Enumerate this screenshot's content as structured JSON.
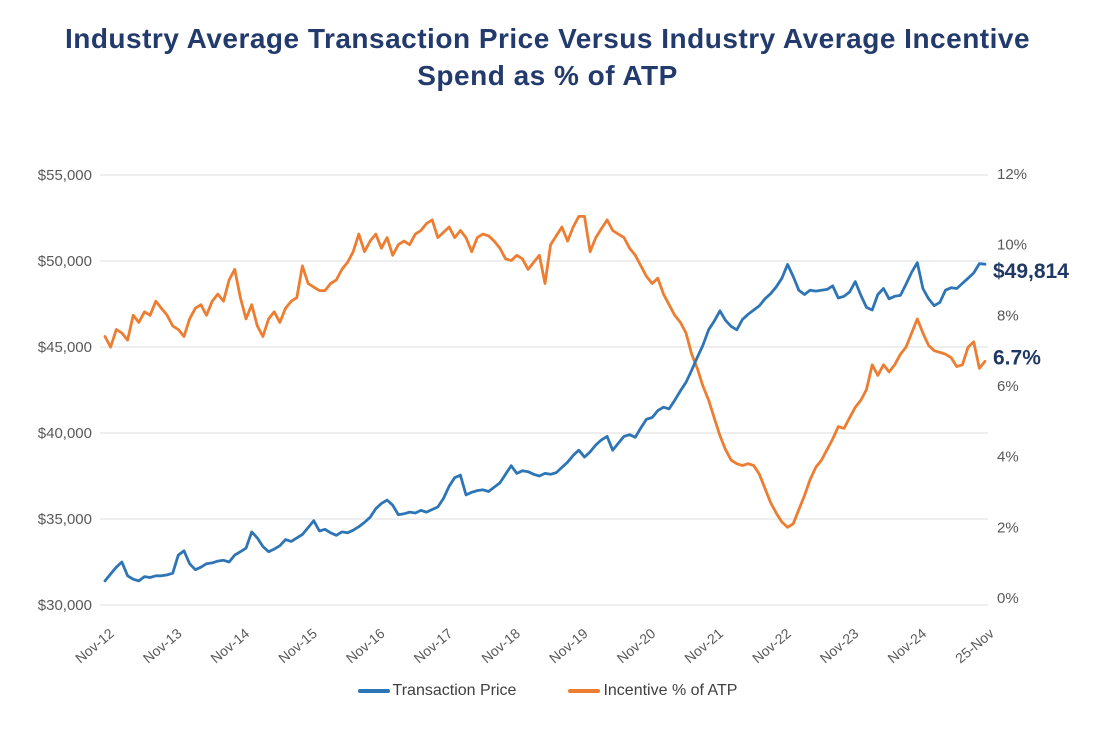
{
  "title": "Industry Average Transaction Price Versus Industry Average Incentive Spend as % of ATP",
  "colors": {
    "title_navy": "#223A6C",
    "end_label_navy": "#1F3864",
    "axis_text_gray": "#595959",
    "gridline_gray": "#DCDCDC",
    "legend_text_gray": "#3F3F3F",
    "background": "#FFFFFF",
    "series_blue": "#2E75B6",
    "series_orange": "#ED7D31"
  },
  "legend": {
    "items": [
      {
        "label": "Transaction Price",
        "color": "#2E75B6"
      },
      {
        "label": "Incentive % of ATP",
        "color": "#ED7D31"
      }
    ]
  },
  "chart_data": {
    "type": "line",
    "title": "Industry Average Transaction Price Versus Industry Average Incentive Spend as % of ATP",
    "grid": "horizontal",
    "legend_position": "bottom",
    "x_axis": {
      "tick_labels": [
        "Nov-12",
        "Nov-13",
        "Nov-14",
        "Nov-15",
        "Nov-16",
        "Nov-17",
        "Nov-18",
        "Nov-19",
        "Nov-20",
        "Nov-21",
        "Nov-22",
        "Nov-23",
        "Nov-24",
        "25-Nov"
      ],
      "unit": "monthly, Nov-2012 through Nov-2025",
      "points_per_series": 157
    },
    "y_axis_left": {
      "title": "Transaction Price (USD)",
      "range": [
        30000,
        55000
      ],
      "tick_values": [
        30000,
        35000,
        40000,
        45000,
        50000,
        55000
      ],
      "tick_labels": [
        "$30,000",
        "$35,000",
        "$40,000",
        "$45,000",
        "$50,000",
        "$55,000"
      ]
    },
    "y_axis_right": {
      "title": "Incentive % of ATP",
      "range": [
        0,
        12
      ],
      "tick_values": [
        0,
        2,
        4,
        6,
        8,
        10,
        12
      ],
      "tick_labels": [
        "0%",
        "2%",
        "4%",
        "6%",
        "8%",
        "10%",
        "12%"
      ]
    },
    "series": [
      {
        "name": "Transaction Price",
        "axis": "left",
        "color": "#2E75B6",
        "end_label": "$49,814",
        "end_label_dy": 14,
        "values": [
          31400,
          31800,
          32200,
          32500,
          31700,
          31500,
          31400,
          31650,
          31600,
          31700,
          31700,
          31750,
          31850,
          32900,
          33150,
          32400,
          32050,
          32200,
          32400,
          32450,
          32550,
          32600,
          32500,
          32900,
          33100,
          33300,
          34250,
          33900,
          33400,
          33100,
          33250,
          33450,
          33800,
          33700,
          33900,
          34100,
          34500,
          34900,
          34300,
          34400,
          34200,
          34050,
          34250,
          34200,
          34350,
          34550,
          34800,
          35100,
          35600,
          35900,
          36100,
          35800,
          35250,
          35300,
          35400,
          35350,
          35500,
          35400,
          35550,
          35700,
          36200,
          36900,
          37400,
          37550,
          36400,
          36550,
          36650,
          36700,
          36600,
          36850,
          37100,
          37600,
          38100,
          37650,
          37800,
          37750,
          37600,
          37500,
          37650,
          37600,
          37700,
          38000,
          38300,
          38700,
          39000,
          38600,
          38900,
          39300,
          39600,
          39800,
          39000,
          39400,
          39800,
          39900,
          39750,
          40300,
          40800,
          40900,
          41300,
          41500,
          41400,
          41900,
          42450,
          42950,
          43650,
          44400,
          45100,
          46000,
          46500,
          47100,
          46550,
          46200,
          46000,
          46600,
          46900,
          47150,
          47400,
          47800,
          48100,
          48500,
          49000,
          49800,
          49100,
          48300,
          48050,
          48300,
          48250,
          48300,
          48350,
          48550,
          47850,
          47950,
          48200,
          48800,
          48000,
          47300,
          47150,
          48050,
          48400,
          47800,
          47950,
          48000,
          48650,
          49350,
          49900,
          48400,
          47800,
          47400,
          47600,
          48300,
          48450,
          48400,
          48700,
          49000,
          49300,
          49850,
          49814
        ]
      },
      {
        "name": "Incentive % of ATP",
        "axis": "right",
        "color": "#ED7D31",
        "end_label": "6.7%",
        "end_label_dy": 3,
        "values": [
          7.4,
          7.1,
          7.6,
          7.5,
          7.3,
          8.0,
          7.8,
          8.1,
          8.0,
          8.4,
          8.2,
          8.0,
          7.7,
          7.6,
          7.4,
          7.9,
          8.2,
          8.3,
          8.0,
          8.4,
          8.6,
          8.4,
          9.0,
          9.3,
          8.5,
          7.9,
          8.3,
          7.7,
          7.4,
          7.9,
          8.1,
          7.8,
          8.2,
          8.4,
          8.5,
          9.4,
          8.9,
          8.8,
          8.7,
          8.7,
          8.9,
          9.0,
          9.3,
          9.5,
          9.8,
          10.3,
          9.8,
          10.1,
          10.3,
          9.9,
          10.2,
          9.7,
          10.0,
          10.1,
          10.0,
          10.3,
          10.4,
          10.6,
          10.7,
          10.2,
          10.35,
          10.5,
          10.2,
          10.4,
          10.2,
          9.8,
          10.2,
          10.3,
          10.25,
          10.1,
          9.9,
          9.6,
          9.55,
          9.7,
          9.6,
          9.3,
          9.5,
          9.7,
          8.9,
          10.0,
          10.25,
          10.5,
          10.1,
          10.5,
          10.8,
          10.8,
          9.8,
          10.2,
          10.45,
          10.7,
          10.4,
          10.3,
          10.2,
          9.9,
          9.7,
          9.4,
          9.1,
          8.9,
          9.05,
          8.6,
          8.3,
          8.0,
          7.8,
          7.5,
          6.9,
          6.5,
          6.0,
          5.6,
          5.1,
          4.6,
          4.2,
          3.9,
          3.8,
          3.75,
          3.8,
          3.75,
          3.5,
          3.1,
          2.7,
          2.4,
          2.15,
          2.0,
          2.1,
          2.5,
          2.9,
          3.35,
          3.7,
          3.9,
          4.2,
          4.5,
          4.85,
          4.8,
          5.1,
          5.4,
          5.6,
          5.9,
          6.6,
          6.3,
          6.6,
          6.4,
          6.6,
          6.9,
          7.1,
          7.5,
          7.9,
          7.5,
          7.15,
          7.0,
          6.95,
          6.9,
          6.8,
          6.55,
          6.6,
          7.1,
          7.25,
          6.5,
          6.7
        ]
      }
    ]
  }
}
